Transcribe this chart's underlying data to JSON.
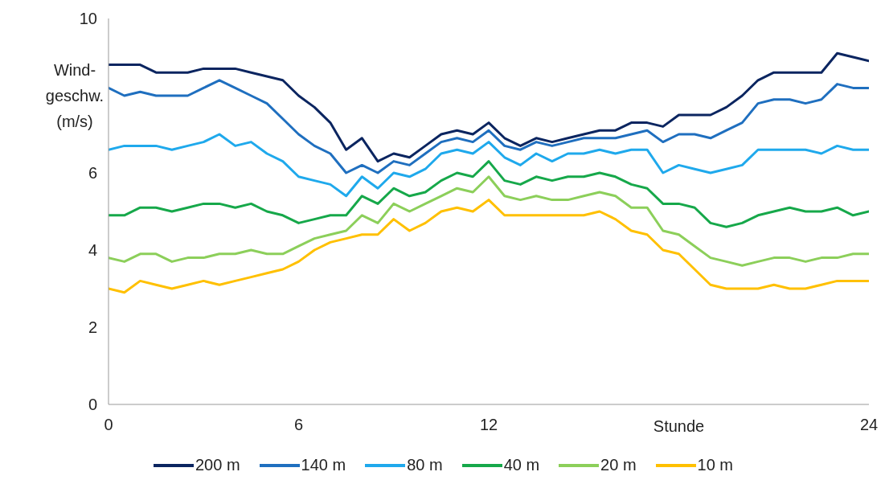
{
  "chart_data": {
    "type": "line",
    "xlabel": "Stunde",
    "ylabel": "Wind-geschw. (m/s)",
    "x": [
      0,
      0.5,
      1,
      1.5,
      2,
      2.5,
      3,
      3.5,
      4,
      4.5,
      5,
      5.5,
      6,
      6.5,
      7,
      7.5,
      8,
      8.5,
      9,
      9.5,
      10,
      10.5,
      11,
      11.5,
      12,
      12.5,
      13,
      13.5,
      14,
      14.5,
      15,
      15.5,
      16,
      16.5,
      17,
      17.5,
      18,
      18.5,
      19,
      19.5,
      20,
      20.5,
      21,
      21.5,
      22,
      22.5,
      23,
      23.5,
      24
    ],
    "xlim": [
      0,
      24
    ],
    "xticks": [
      0,
      6,
      12,
      24
    ],
    "ylim": [
      0,
      10
    ],
    "yticks": [
      0,
      2,
      4,
      6,
      10
    ],
    "grid": false,
    "legend": "bottom",
    "marker": "none",
    "line_style": "solid",
    "series": [
      {
        "name": "200 m",
        "color": "#0b2560",
        "values": [
          8.8,
          8.8,
          8.8,
          8.6,
          8.6,
          8.6,
          8.7,
          8.7,
          8.7,
          8.6,
          8.5,
          8.4,
          8.0,
          7.7,
          7.3,
          6.6,
          6.9,
          6.3,
          6.5,
          6.4,
          6.7,
          7.0,
          7.1,
          7.0,
          7.3,
          6.9,
          6.7,
          6.9,
          6.8,
          6.9,
          7.0,
          7.1,
          7.1,
          7.3,
          7.3,
          7.2,
          7.5,
          7.5,
          7.5,
          7.7,
          8.0,
          8.4,
          8.6,
          8.6,
          8.6,
          8.6,
          9.1,
          9.0,
          8.9
        ]
      },
      {
        "name": "140 m",
        "color": "#1f6fbf",
        "values": [
          8.2,
          8.0,
          8.1,
          8.0,
          8.0,
          8.0,
          8.2,
          8.4,
          8.2,
          8.0,
          7.8,
          7.4,
          7.0,
          6.7,
          6.5,
          6.0,
          6.2,
          6.0,
          6.3,
          6.2,
          6.5,
          6.8,
          6.9,
          6.8,
          7.1,
          6.7,
          6.6,
          6.8,
          6.7,
          6.8,
          6.9,
          6.9,
          6.9,
          7.0,
          7.1,
          6.8,
          7.0,
          7.0,
          6.9,
          7.1,
          7.3,
          7.8,
          7.9,
          7.9,
          7.8,
          7.9,
          8.3,
          8.2,
          8.2
        ]
      },
      {
        "name": "80 m",
        "color": "#1fa9ec",
        "values": [
          6.6,
          6.7,
          6.7,
          6.7,
          6.6,
          6.7,
          6.8,
          7.0,
          6.7,
          6.8,
          6.5,
          6.3,
          5.9,
          5.8,
          5.7,
          5.4,
          5.9,
          5.6,
          6.0,
          5.9,
          6.1,
          6.5,
          6.6,
          6.5,
          6.8,
          6.4,
          6.2,
          6.5,
          6.3,
          6.5,
          6.5,
          6.6,
          6.5,
          6.6,
          6.6,
          6.0,
          6.2,
          6.1,
          6.0,
          6.1,
          6.2,
          6.6,
          6.6,
          6.6,
          6.6,
          6.5,
          6.7,
          6.6,
          6.6
        ]
      },
      {
        "name": "40 m",
        "color": "#16a84a",
        "values": [
          4.9,
          4.9,
          5.1,
          5.1,
          5.0,
          5.1,
          5.2,
          5.2,
          5.1,
          5.2,
          5.0,
          4.9,
          4.7,
          4.8,
          4.9,
          4.9,
          5.4,
          5.2,
          5.6,
          5.4,
          5.5,
          5.8,
          6.0,
          5.9,
          6.3,
          5.8,
          5.7,
          5.9,
          5.8,
          5.9,
          5.9,
          6.0,
          5.9,
          5.7,
          5.6,
          5.2,
          5.2,
          5.1,
          4.7,
          4.6,
          4.7,
          4.9,
          5.0,
          5.1,
          5.0,
          5.0,
          5.1,
          4.9,
          5.0
        ]
      },
      {
        "name": "20 m",
        "color": "#8ccf5a",
        "values": [
          3.8,
          3.7,
          3.9,
          3.9,
          3.7,
          3.8,
          3.8,
          3.9,
          3.9,
          4.0,
          3.9,
          3.9,
          4.1,
          4.3,
          4.4,
          4.5,
          4.9,
          4.7,
          5.2,
          5.0,
          5.2,
          5.4,
          5.6,
          5.5,
          5.9,
          5.4,
          5.3,
          5.4,
          5.3,
          5.3,
          5.4,
          5.5,
          5.4,
          5.1,
          5.1,
          4.5,
          4.4,
          4.1,
          3.8,
          3.7,
          3.6,
          3.7,
          3.8,
          3.8,
          3.7,
          3.8,
          3.8,
          3.9,
          3.9
        ]
      },
      {
        "name": "10 m",
        "color": "#ffc000",
        "values": [
          3.0,
          2.9,
          3.2,
          3.1,
          3.0,
          3.1,
          3.2,
          3.1,
          3.2,
          3.3,
          3.4,
          3.5,
          3.7,
          4.0,
          4.2,
          4.3,
          4.4,
          4.4,
          4.8,
          4.5,
          4.7,
          5.0,
          5.1,
          5.0,
          5.3,
          4.9,
          4.9,
          4.9,
          4.9,
          4.9,
          4.9,
          5.0,
          4.8,
          4.5,
          4.4,
          4.0,
          3.9,
          3.5,
          3.1,
          3.0,
          3.0,
          3.0,
          3.1,
          3.0,
          3.0,
          3.1,
          3.2,
          3.2,
          3.2
        ]
      }
    ]
  }
}
